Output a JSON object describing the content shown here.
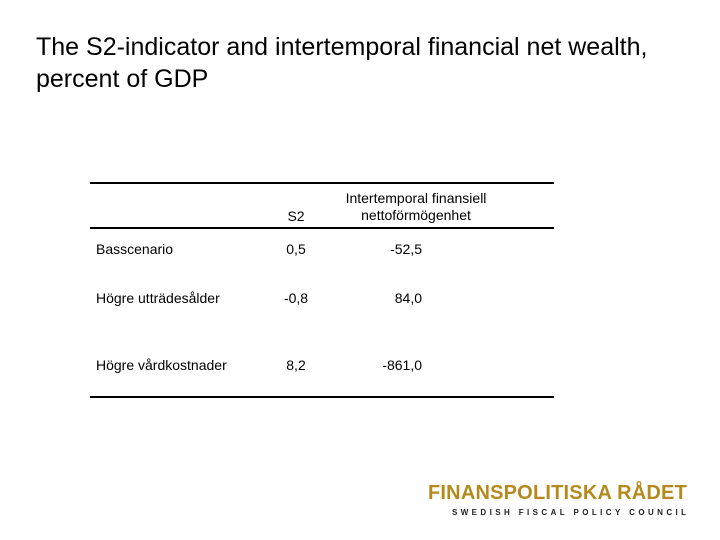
{
  "slide": {
    "title": "The S2-indicator and intertemporal financial net wealth, percent of GDP"
  },
  "table": {
    "headers": [
      "",
      "S2",
      "Intertemporal finansiell nettoförmögenhet"
    ],
    "rows": [
      {
        "label": "Basscenario",
        "s2": "0,5",
        "wealth": "-52,5"
      },
      {
        "label": "Högre utträdesålder",
        "s2": "-0,8",
        "wealth": "84,0"
      },
      {
        "label": "Högre vårdkostnader",
        "s2": "8,2",
        "wealth": "-861,0"
      }
    ]
  },
  "logo": {
    "name": "FINANSPOLITISKA RÅDET",
    "subtitle": "SWEDISH FISCAL POLICY COUNCIL",
    "color": "#b48a1c"
  }
}
